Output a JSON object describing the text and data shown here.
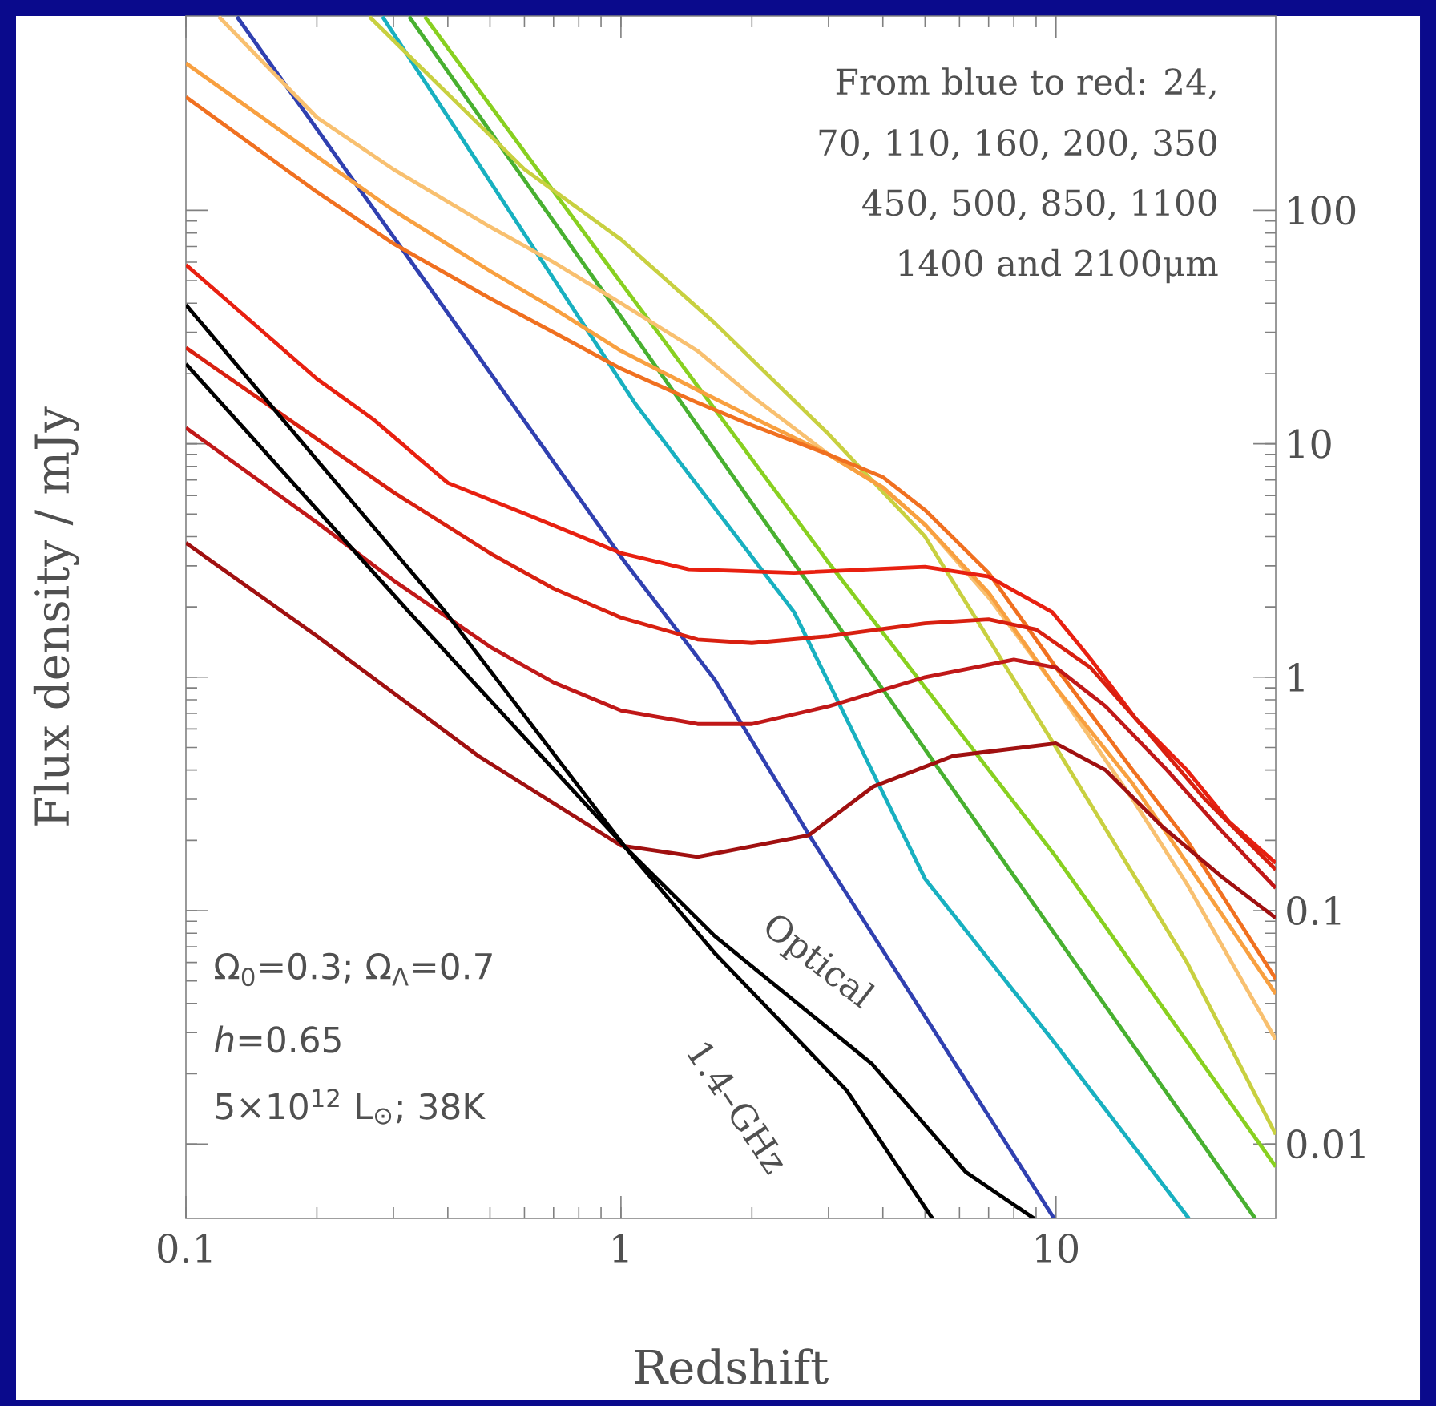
{
  "chart_data": {
    "type": "line",
    "xlabel": "Redshift",
    "ylabel": "Flux density / mJy",
    "log": "xy",
    "xlim": [
      0.1,
      32
    ],
    "ylim": [
      0.0048,
      680
    ],
    "xticks": [
      0.1,
      1,
      10
    ],
    "yticks": [
      0.01,
      0.1,
      1,
      10,
      100
    ],
    "series": [
      {
        "color": "#3040b0",
        "x": [
          0.131,
          1.01,
          1.64,
          2.71,
          9.9
        ],
        "values": [
          676,
          3.2,
          0.98,
          0.21,
          0.0048
        ]
      },
      {
        "color": "#18b0c0",
        "x": [
          0.283,
          1.08,
          2.5,
          5,
          9.8,
          20.2
        ],
        "values": [
          676,
          14.8,
          1.9,
          0.137,
          0.028,
          0.0048
        ]
      },
      {
        "color": "#48b030",
        "x": [
          0.326,
          1,
          3,
          10,
          28.7
        ],
        "values": [
          676,
          35,
          1.9,
          0.078,
          0.0048
        ]
      },
      {
        "color": "#88d020",
        "x": [
          0.354,
          1,
          3,
          10,
          32
        ],
        "values": [
          676,
          49,
          3.1,
          0.17,
          0.008
        ]
      },
      {
        "color": "#c8d040",
        "x": [
          0.264,
          0.6,
          1,
          1.64,
          3,
          5,
          10,
          20,
          32
        ],
        "values": [
          676,
          150,
          75,
          33,
          11,
          4.0,
          0.5,
          0.06,
          0.011
        ]
      },
      {
        "color": "#f8c070",
        "x": [
          0.119,
          0.2,
          0.3,
          0.5,
          0.7,
          1,
          1.5,
          2,
          3,
          4,
          5,
          7,
          10,
          15,
          20,
          32
        ],
        "values": [
          676,
          250,
          150,
          85,
          60,
          40,
          25,
          16,
          9,
          6.5,
          4.5,
          2.2,
          0.9,
          0.3,
          0.13,
          0.028
        ]
      },
      {
        "color": "#f8a040",
        "x": [
          0.1,
          0.2,
          0.3,
          0.5,
          0.7,
          1,
          1.5,
          2,
          3,
          4,
          5,
          7,
          10,
          15,
          20,
          32
        ],
        "values": [
          427,
          170,
          100,
          55,
          38,
          25,
          17,
          13,
          9.0,
          6.5,
          4.5,
          2.3,
          0.9,
          0.35,
          0.16,
          0.044
        ]
      },
      {
        "color": "#f07020",
        "x": [
          0.1,
          0.2,
          0.3,
          0.5,
          0.7,
          1,
          1.5,
          2,
          3,
          4,
          5,
          7,
          10,
          15,
          20,
          32
        ],
        "values": [
          306,
          120,
          72,
          42,
          30,
          21,
          15,
          12,
          9.0,
          7.2,
          5.2,
          2.8,
          1.1,
          0.4,
          0.2,
          0.051
        ]
      },
      {
        "color": "#e82010",
        "x": [
          0.1,
          0.2,
          0.27,
          0.4,
          0.62,
          1,
          1.43,
          2.5,
          5,
          7,
          9.8,
          12,
          15.3,
          20,
          25,
          32
        ],
        "values": [
          58.5,
          19,
          12.7,
          6.8,
          4.9,
          3.4,
          2.9,
          2.8,
          2.97,
          2.7,
          1.9,
          1.2,
          0.66,
          0.4,
          0.24,
          0.16
        ]
      },
      {
        "color": "#d82010",
        "x": [
          0.1,
          0.2,
          0.3,
          0.5,
          0.7,
          1,
          1.5,
          2,
          3,
          5,
          7,
          9,
          12,
          16,
          22,
          32
        ],
        "values": [
          25.8,
          10.5,
          6.2,
          3.4,
          2.4,
          1.8,
          1.45,
          1.4,
          1.5,
          1.7,
          1.77,
          1.6,
          1.1,
          0.6,
          0.3,
          0.15
        ]
      },
      {
        "color": "#c01818",
        "x": [
          0.1,
          0.2,
          0.3,
          0.5,
          0.7,
          1,
          1.5,
          2,
          3,
          5,
          8,
          10,
          13,
          18,
          24,
          32
        ],
        "values": [
          11.7,
          4.6,
          2.6,
          1.35,
          0.95,
          0.72,
          0.63,
          0.63,
          0.75,
          1.0,
          1.19,
          1.1,
          0.75,
          0.4,
          0.22,
          0.125
        ]
      },
      {
        "color": "#a01010",
        "x": [
          0.1,
          0.2,
          0.47,
          1,
          1.5,
          2.7,
          3.8,
          5.8,
          10,
          13,
          17.5,
          24,
          32
        ],
        "values": [
          3.76,
          1.5,
          0.46,
          0.19,
          0.17,
          0.21,
          0.34,
          0.46,
          0.52,
          0.4,
          0.23,
          0.14,
          0.093
        ]
      },
      {
        "color": "#000000",
        "x": [
          0.1,
          0.326,
          1.02,
          1.64,
          3.78,
          6.2,
          8.9
        ],
        "values": [
          22,
          1.9,
          0.188,
          0.078,
          0.022,
          0.0076,
          0.0048
        ]
      },
      {
        "color": "#000000",
        "x": [
          0.1,
          0.395,
          1.02,
          1.64,
          3.3,
          5.2
        ],
        "values": [
          39.4,
          1.9,
          0.188,
          0.066,
          0.017,
          0.0048
        ]
      }
    ],
    "annotations": [
      "From blue to red: 24,",
      "70, 110, 160, 200, 350",
      "450, 500, 850, 1100",
      "1400 and 2100μm",
      "Ω$_{0}$=0.3; Ω$_{Λ}$=0.7",
      "*h*=0.65",
      "5×10$^{12}$ L$_{⊙}$; 38K",
      "Optical",
      "1.4–GHz"
    ]
  }
}
